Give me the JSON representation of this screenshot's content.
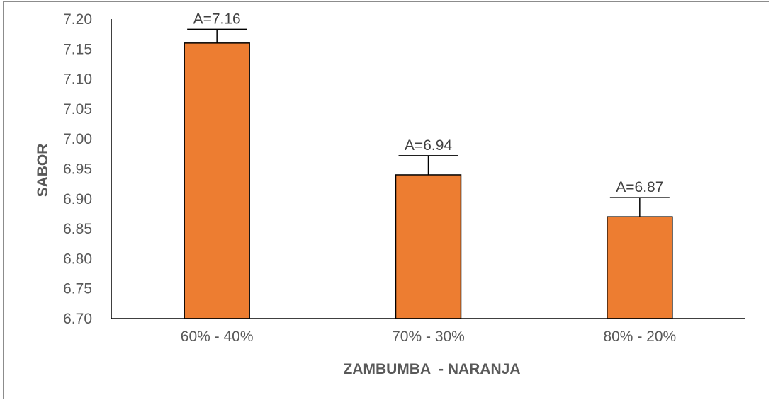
{
  "chart_data": {
    "type": "bar",
    "categories": [
      "60% - 40%",
      "70% - 30%",
      "80% - 20%"
    ],
    "values": [
      7.16,
      6.94,
      6.87
    ],
    "error_upper": [
      7.183,
      6.972,
      6.902
    ],
    "data_labels": [
      "A=7.16",
      "A=6.94",
      "A=6.87"
    ],
    "xlabel": "ZAMBUMBA  - NARANJA",
    "ylabel": "SABOR",
    "ylim": [
      6.7,
      7.2
    ],
    "yticks": [
      "6.70",
      "6.75",
      "6.80",
      "6.85",
      "6.90",
      "6.95",
      "7.00",
      "7.05",
      "7.10",
      "7.15",
      "7.20"
    ],
    "grid": false,
    "legend": "none",
    "bar_color": "#ED7D31",
    "bar_edge_color": "#000000"
  }
}
